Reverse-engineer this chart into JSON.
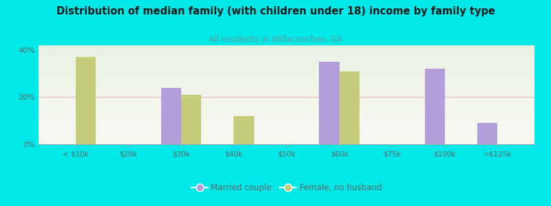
{
  "title": "Distribution of median family (with children under 18) income by family type",
  "subtitle": "All residents in Willacoochee, GA",
  "categories": [
    "< $10k",
    "$20k",
    "$30k",
    "$40k",
    "$50k",
    "$60k",
    "$75k",
    "$100k",
    ">$125k"
  ],
  "married_values": [
    0,
    0,
    24,
    0,
    0,
    35,
    0,
    32,
    9
  ],
  "female_values": [
    37,
    0,
    21,
    12,
    0,
    31,
    0,
    0,
    0
  ],
  "married_color": "#b39ddb",
  "female_color": "#c5cc7a",
  "bg_color": "#00e8e8",
  "plot_bg_top": "#e8f0e0",
  "plot_bg_bottom": "#f5f8f0",
  "title_color": "#1a1a1a",
  "subtitle_color": "#6a9a9a",
  "axis_label_color": "#666666",
  "grid_color": "#e8c0c0",
  "ylim": [
    0,
    42
  ],
  "yticks": [
    0,
    20,
    40
  ],
  "ytick_labels": [
    "0%",
    "20%",
    "40%"
  ],
  "bar_width": 0.38,
  "legend_married": "Married couple",
  "legend_female": "Female, no husband"
}
